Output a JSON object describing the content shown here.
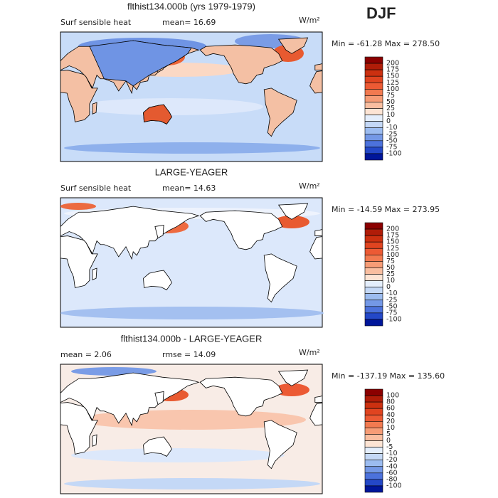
{
  "season": "DJF",
  "panels": [
    {
      "title": "flthist134.000b (yrs 1979-1979)",
      "left_label": "Surf sensible heat",
      "center_label": "mean=  16.69",
      "units": "W/m²",
      "min_max": "Min = -61.28 Max = 278.50",
      "colorbar": {
        "labels": [
          "200",
          "175",
          "150",
          "125",
          "100",
          "75",
          "50",
          "25",
          "10",
          "0",
          "-10",
          "-25",
          "-50",
          "-75",
          "-100"
        ],
        "colors": [
          "#8b0000",
          "#b01c08",
          "#cc3010",
          "#e04420",
          "#ec5a34",
          "#f27a50",
          "#f69c76",
          "#f9bea0",
          "#fde4d4",
          "#e4eefc",
          "#c4d8f6",
          "#9cbcf0",
          "#7498e6",
          "#4c72dc",
          "#2448c8",
          "#00169a"
        ]
      }
    },
    {
      "title": "LARGE-YEAGER",
      "left_label": "Surf sensible heat",
      "center_label": "mean=  14.63",
      "units": "W/m²",
      "min_max": "Min = -14.59 Max = 273.95",
      "colorbar": {
        "labels": [
          "200",
          "175",
          "150",
          "125",
          "100",
          "75",
          "50",
          "25",
          "10",
          "0",
          "-10",
          "-25",
          "-50",
          "-75",
          "-100"
        ],
        "colors": [
          "#8b0000",
          "#b01c08",
          "#cc3010",
          "#e04420",
          "#ec5a34",
          "#f27a50",
          "#f69c76",
          "#f9bea0",
          "#fde4d4",
          "#e4eefc",
          "#c4d8f6",
          "#9cbcf0",
          "#7498e6",
          "#4c72dc",
          "#2448c8",
          "#00169a"
        ]
      }
    },
    {
      "title": "flthist134.000b - LARGE-YEAGER",
      "left_label": "mean =   2.06",
      "center_label": "rmse =  14.09",
      "units": "W/m²",
      "min_max": "Min = -137.19 Max = 135.60",
      "colorbar": {
        "labels": [
          "100",
          "80",
          "60",
          "40",
          "20",
          "10",
          "5",
          "0",
          "-5",
          "-10",
          "-20",
          "-40",
          "-60",
          "-80",
          "-100"
        ],
        "colors": [
          "#8b0000",
          "#b01c08",
          "#cc3010",
          "#e04420",
          "#ec5a34",
          "#f27a50",
          "#f69c76",
          "#f9bea0",
          "#fde4d4",
          "#e4eefc",
          "#c4d8f6",
          "#9cbcf0",
          "#7498e6",
          "#4c72dc",
          "#2448c8",
          "#00169a"
        ]
      }
    }
  ]
}
